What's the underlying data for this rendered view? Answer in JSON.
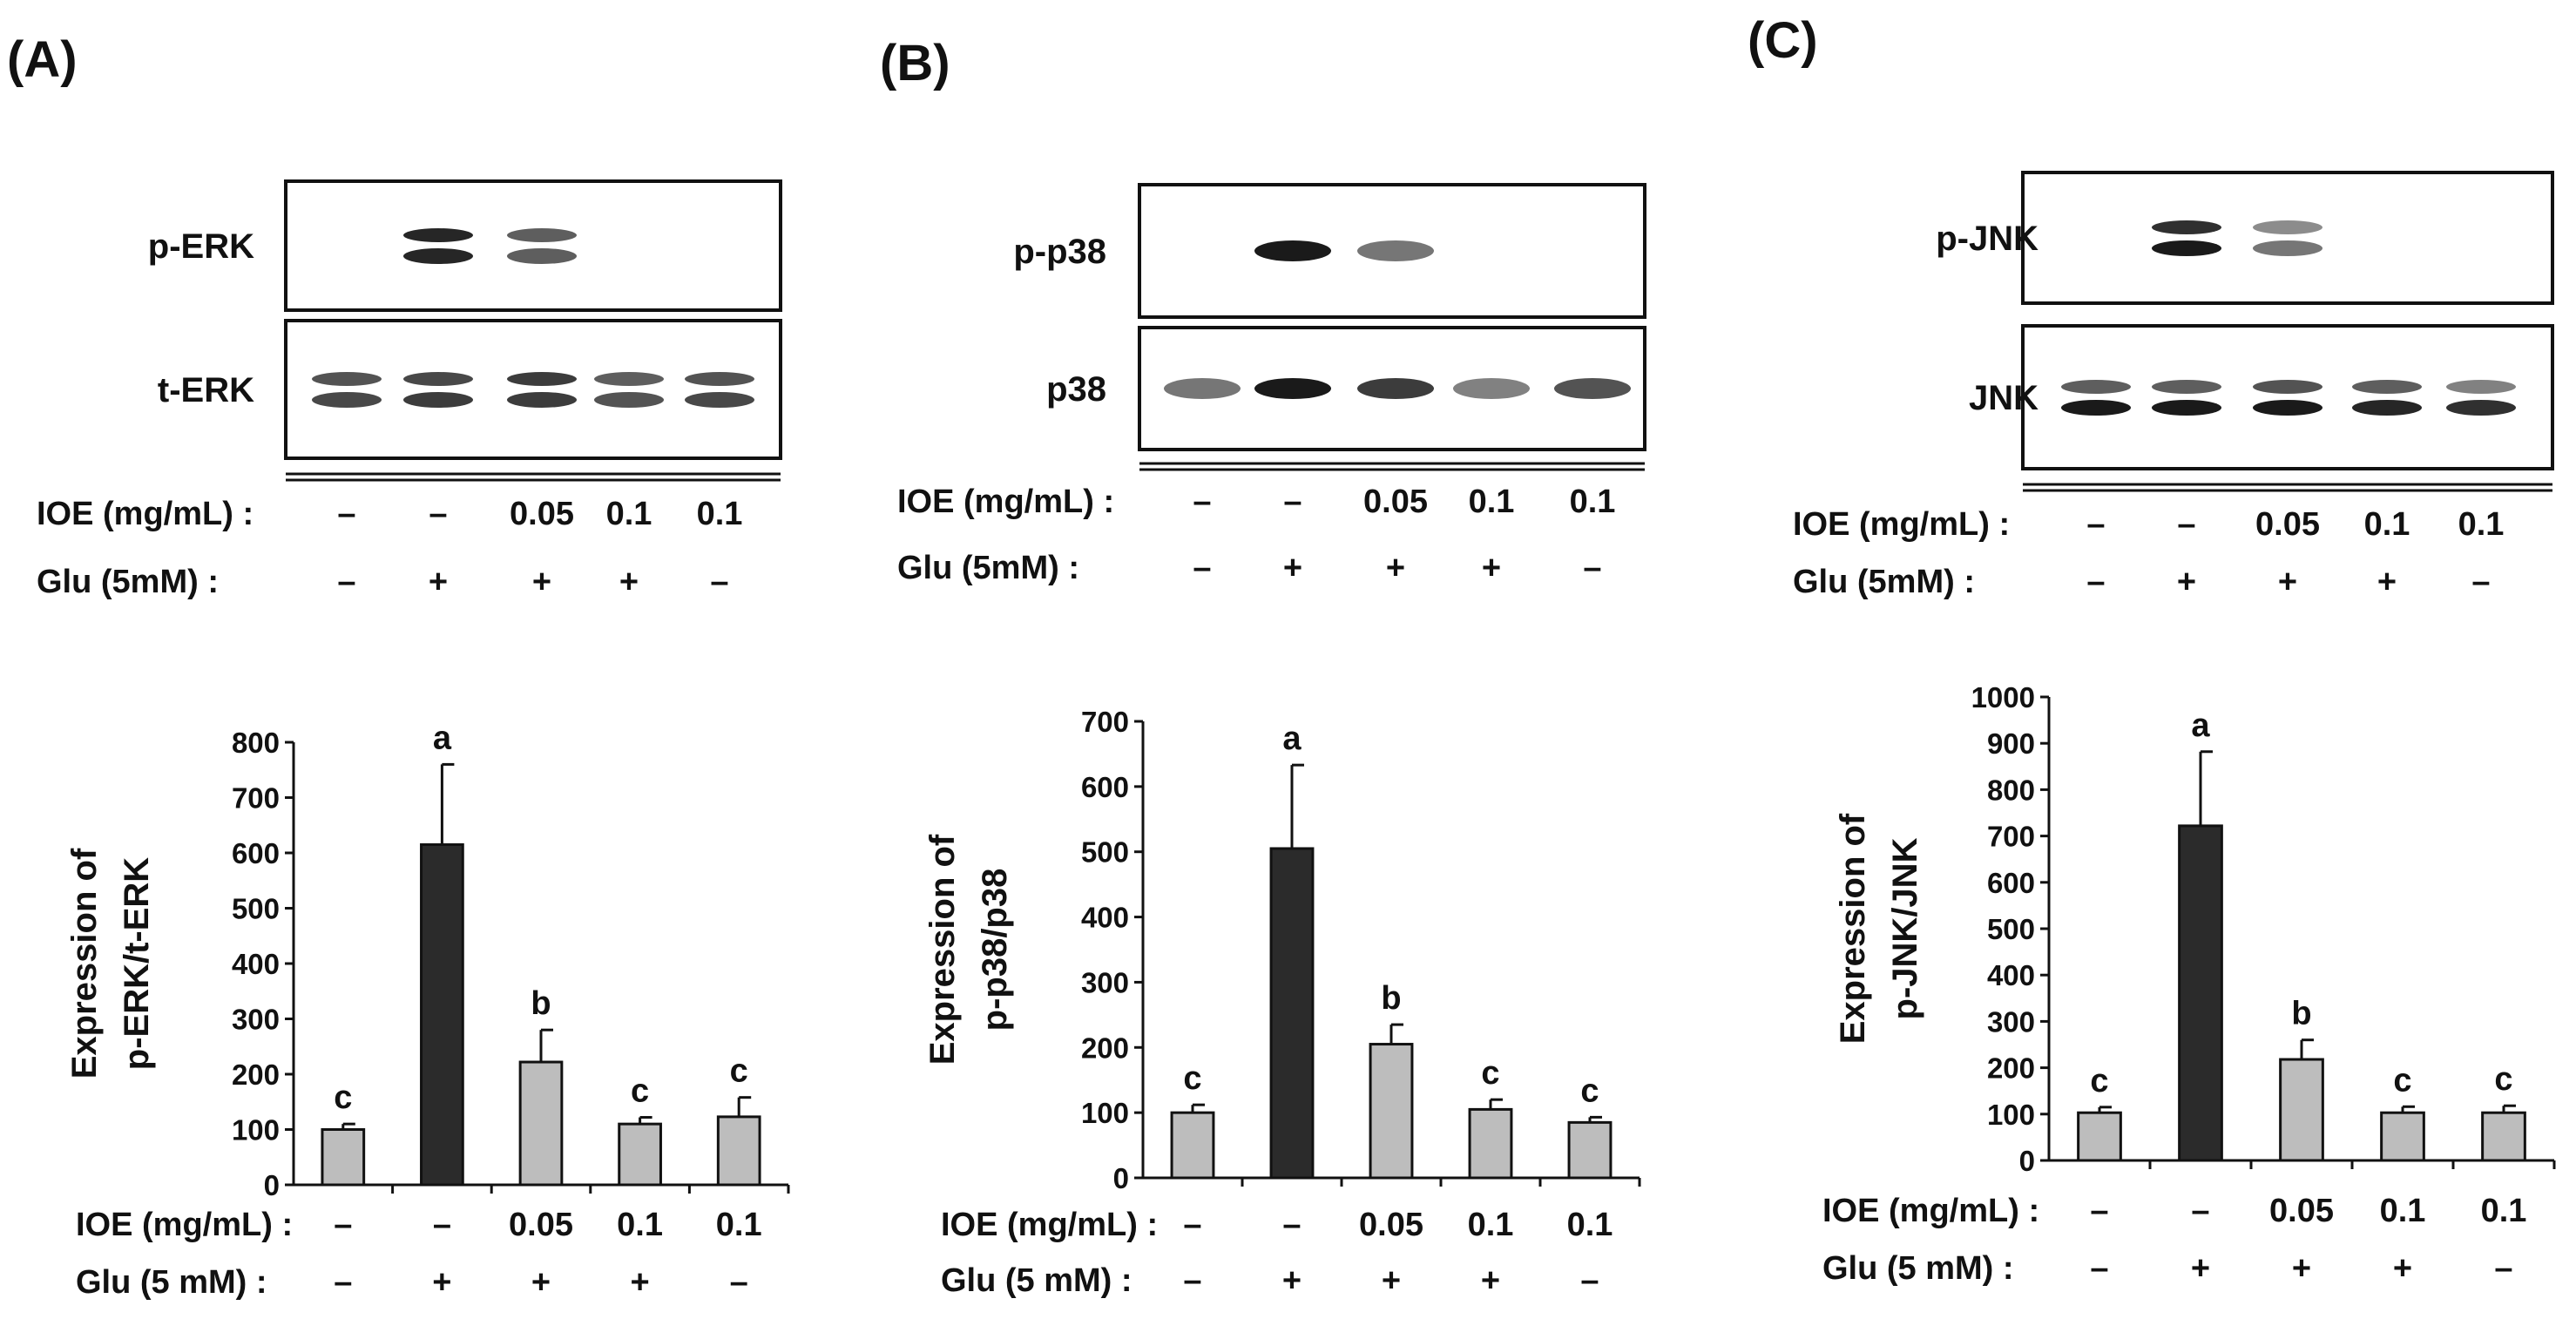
{
  "figure": {
    "style": {
      "bar_dark": "#2b2b2b",
      "bar_light": "#bdbdbd",
      "bar_stroke": "#111111",
      "band_color": "#1a1a1a"
    }
  },
  "panels": [
    {
      "id": "A",
      "letter": "(A)",
      "blot": {
        "rows": [
          {
            "label": "p-ERK",
            "bands": [
              [],
              [
                0.95,
                0.95
              ],
              [
                0.7,
                0.7
              ],
              [],
              []
            ],
            "doublet": true
          },
          {
            "label": "t-ERK",
            "bands": [
              [
                0.75,
                0.8
              ],
              [
                0.8,
                0.85
              ],
              [
                0.85,
                0.85
              ],
              [
                0.7,
                0.75
              ],
              [
                0.75,
                0.8
              ]
            ],
            "doublet": true
          }
        ],
        "conditions": [
          {
            "label": "IOE (mg/mL) :",
            "values": [
              "–",
              "–",
              "0.05",
              "0.1",
              "0.1"
            ]
          },
          {
            "label": "Glu (5mM)  :",
            "values": [
              "–",
              "+",
              "+",
              "+",
              "–"
            ]
          }
        ]
      },
      "conditions_bottom": [
        {
          "label": "IOE (mg/mL) :",
          "values": [
            "–",
            "–",
            "0.05",
            "0.1",
            "0.1"
          ]
        },
        {
          "label": "Glu (5 mM) :",
          "values": [
            "–",
            "+",
            "+",
            "+",
            "–"
          ]
        }
      ]
    },
    {
      "id": "B",
      "letter": "(B)",
      "blot": {
        "rows": [
          {
            "label": "p-p38",
            "bands": [
              [],
              [
                1.0
              ],
              [
                0.6
              ],
              [],
              []
            ],
            "doublet": false
          },
          {
            "label": "p38",
            "bands": [
              [
                0.6
              ],
              [
                1.0
              ],
              [
                0.85
              ],
              [
                0.55
              ],
              [
                0.75
              ]
            ],
            "doublet": false
          }
        ],
        "conditions": [
          {
            "label": "IOE (mg/mL) :",
            "values": [
              "–",
              "–",
              "0.05",
              "0.1",
              "0.1"
            ]
          },
          {
            "label": "Glu (5mM)  :",
            "values": [
              "–",
              "+",
              "+",
              "+",
              "–"
            ]
          }
        ]
      },
      "conditions_bottom": [
        {
          "label": "IOE (mg/mL) :",
          "values": [
            "–",
            "–",
            "0.05",
            "0.1",
            "0.1"
          ]
        },
        {
          "label": "Glu (5 mM) :",
          "values": [
            "–",
            "+",
            "+",
            "+",
            "–"
          ]
        }
      ]
    },
    {
      "id": "C",
      "letter": "(C)",
      "blot": {
        "rows": [
          {
            "label": "p-JNK",
            "bands": [
              [],
              [
                0.9,
                1.0
              ],
              [
                0.5,
                0.6
              ],
              [],
              []
            ],
            "doublet": true
          },
          {
            "label": "JNK",
            "bands": [
              [
                0.7,
                1.0
              ],
              [
                0.7,
                1.0
              ],
              [
                0.75,
                1.0
              ],
              [
                0.7,
                0.95
              ],
              [
                0.55,
                0.9
              ]
            ],
            "doublet": true
          }
        ],
        "conditions": [
          {
            "label": "IOE (mg/mL) :",
            "values": [
              "–",
              "–",
              "0.05",
              "0.1",
              "0.1"
            ]
          },
          {
            "label": "Glu (5mM)  :",
            "values": [
              "–",
              "+",
              "+",
              "+",
              "–"
            ]
          }
        ]
      },
      "conditions_bottom": [
        {
          "label": "IOE (mg/mL) :",
          "values": [
            "–",
            "–",
            "0.05",
            "0.1",
            "0.1"
          ]
        },
        {
          "label": "Glu (5 mM) :",
          "values": [
            "–",
            "+",
            "+",
            "+",
            "–"
          ]
        }
      ]
    }
  ],
  "chart_data": [
    {
      "type": "bar",
      "panel": "A",
      "ylabel": [
        "Expression of",
        "p-ERK/t-ERK"
      ],
      "ylim": [
        0,
        800
      ],
      "yticks": [
        0,
        100,
        200,
        300,
        400,
        500,
        600,
        700,
        800
      ],
      "categories": [
        "1",
        "2",
        "3",
        "4",
        "5"
      ],
      "values": [
        100,
        615,
        222,
        110,
        123
      ],
      "errors": [
        10,
        145,
        58,
        12,
        35
      ],
      "letters": [
        "c",
        "a",
        "b",
        "c",
        "c"
      ],
      "bar_tone": [
        "light",
        "dark",
        "light",
        "light",
        "light"
      ],
      "grid": false
    },
    {
      "type": "bar",
      "panel": "B",
      "ylabel": [
        "Expression of",
        "p-p38/p38"
      ],
      "ylim": [
        0,
        700
      ],
      "yticks": [
        0,
        100,
        200,
        300,
        400,
        500,
        600,
        700
      ],
      "categories": [
        "1",
        "2",
        "3",
        "4",
        "5"
      ],
      "values": [
        100,
        505,
        205,
        105,
        85
      ],
      "errors": [
        12,
        128,
        30,
        15,
        8
      ],
      "letters": [
        "c",
        "a",
        "b",
        "c",
        "c"
      ],
      "bar_tone": [
        "light",
        "dark",
        "light",
        "light",
        "light"
      ],
      "grid": false
    },
    {
      "type": "bar",
      "panel": "C",
      "ylabel": [
        "Expression of",
        "p-JNK/JNK"
      ],
      "ylim": [
        0,
        1000
      ],
      "yticks": [
        0,
        100,
        200,
        300,
        400,
        500,
        600,
        700,
        800,
        900,
        1000
      ],
      "categories": [
        "1",
        "2",
        "3",
        "4",
        "5"
      ],
      "values": [
        103,
        722,
        218,
        103,
        103
      ],
      "errors": [
        12,
        160,
        42,
        13,
        15
      ],
      "letters": [
        "c",
        "a",
        "b",
        "c",
        "c"
      ],
      "bar_tone": [
        "light",
        "dark",
        "light",
        "light",
        "light"
      ],
      "grid": false
    }
  ]
}
